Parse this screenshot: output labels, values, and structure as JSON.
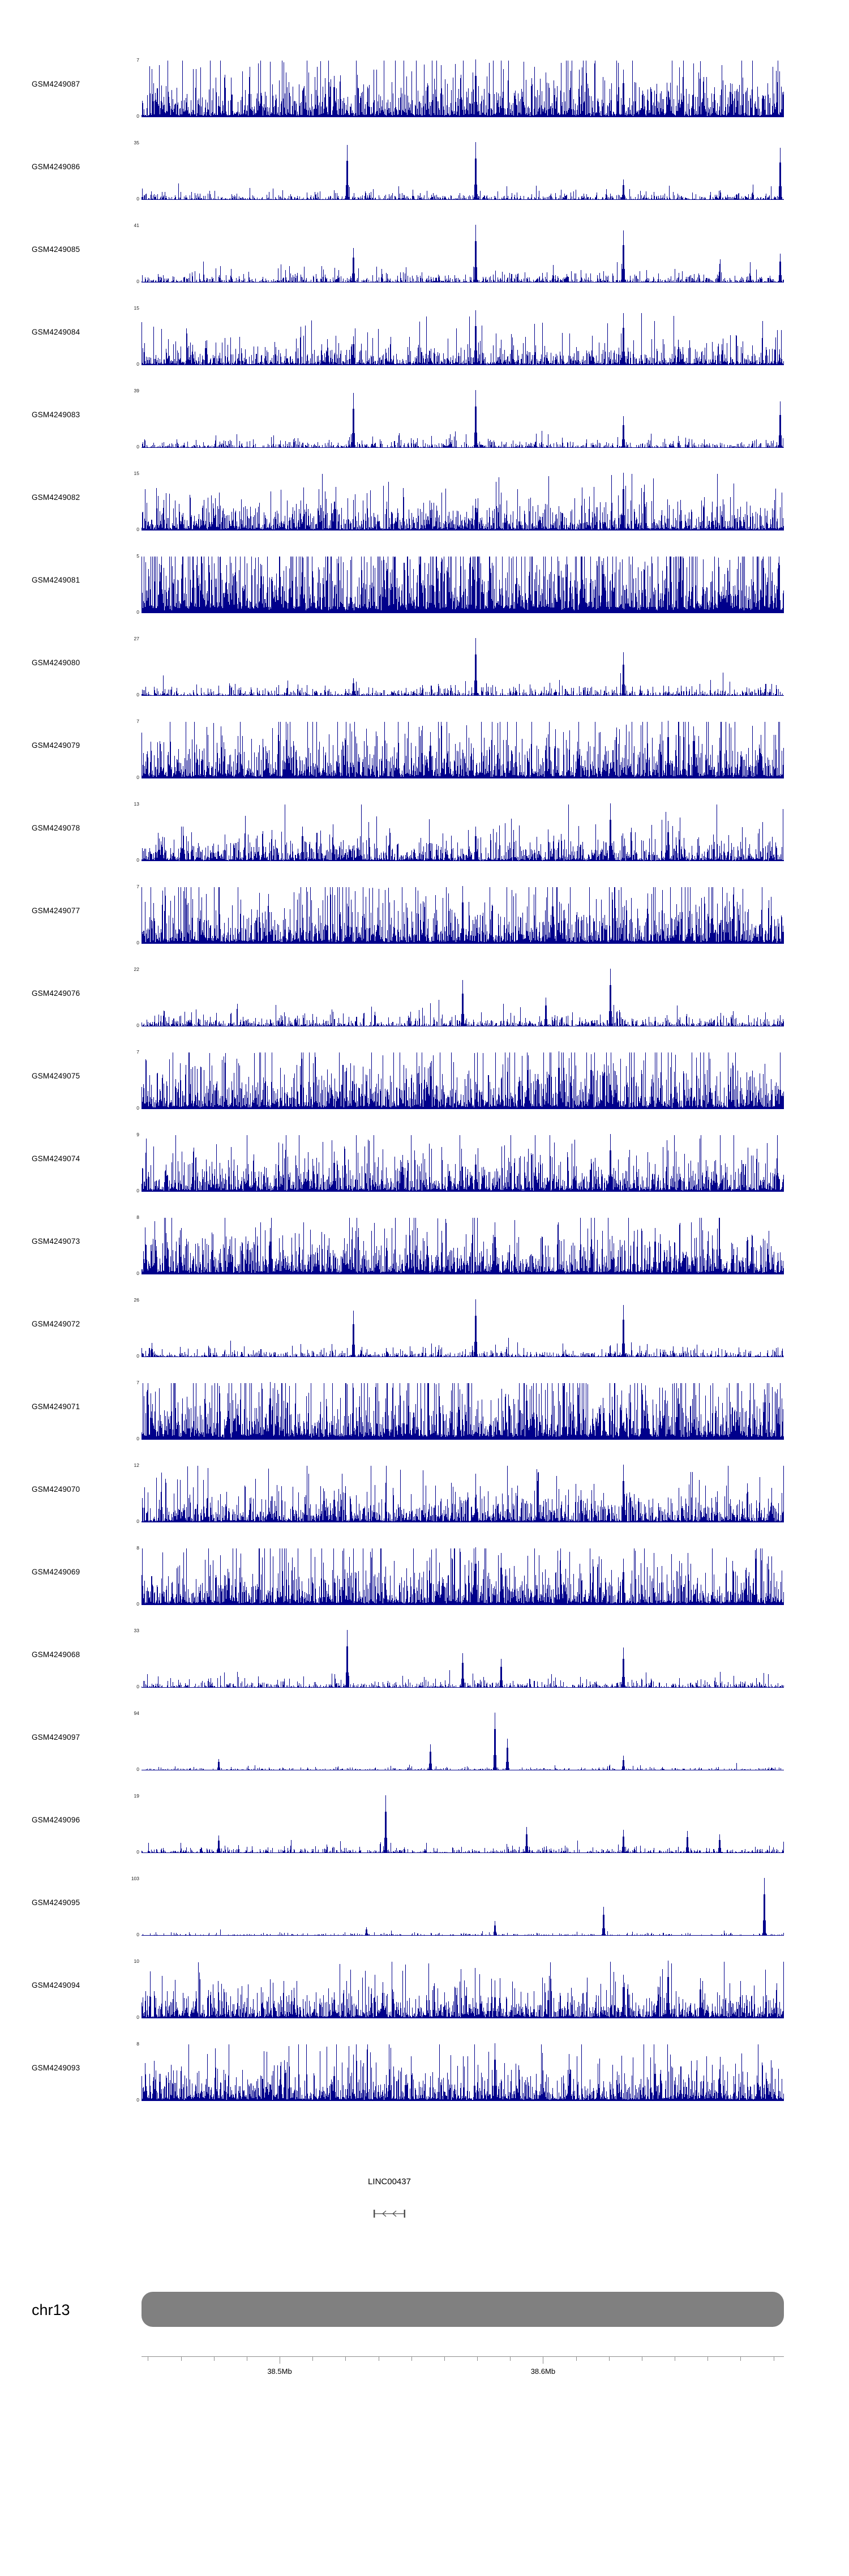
{
  "page": {
    "background": "#ffffff"
  },
  "chart_data": {
    "type": "area",
    "subtype": "genome-coverage-signal-tracks",
    "title": "",
    "xlabel": "",
    "ylabel": "",
    "grid": false,
    "legend": "none",
    "signal_color": "#00008B",
    "tracks": [
      {
        "id": "GSM4249087",
        "ymax": 7,
        "ymin": 0,
        "profile": "dense",
        "mean": 0.28,
        "base": 0.05,
        "gap": 0.08,
        "seed": 101,
        "spikes": [
          {
            "x": 0.3,
            "h": 0.72
          },
          {
            "x": 0.52,
            "h": 1.0
          },
          {
            "x": 0.75,
            "h": 0.82
          }
        ]
      },
      {
        "id": "GSM4249086",
        "ymax": 35,
        "ymin": 0,
        "profile": "sparse",
        "mean": 0.045,
        "base": 0.008,
        "gap": 0.3,
        "seed": 102,
        "spikes": [
          {
            "x": 0.32,
            "h": 0.95
          },
          {
            "x": 0.52,
            "h": 1.0
          },
          {
            "x": 0.75,
            "h": 0.35
          },
          {
            "x": 0.995,
            "h": 0.9
          }
        ]
      },
      {
        "id": "GSM4249085",
        "ymax": 41,
        "ymin": 0,
        "profile": "sparse",
        "mean": 0.06,
        "base": 0.01,
        "gap": 0.25,
        "seed": 103,
        "spikes": [
          {
            "x": 0.33,
            "h": 0.6
          },
          {
            "x": 0.52,
            "h": 1.0
          },
          {
            "x": 0.75,
            "h": 0.9
          },
          {
            "x": 0.995,
            "h": 0.5
          }
        ]
      },
      {
        "id": "GSM4249084",
        "ymax": 15,
        "ymin": 0,
        "profile": "medium",
        "mean": 0.15,
        "base": 0.03,
        "gap": 0.15,
        "seed": 104,
        "spikes": [
          {
            "x": 0.33,
            "h": 0.5
          },
          {
            "x": 0.52,
            "h": 0.95
          },
          {
            "x": 0.75,
            "h": 0.9
          }
        ]
      },
      {
        "id": "GSM4249083",
        "ymax": 39,
        "ymin": 0,
        "profile": "sparse",
        "mean": 0.05,
        "base": 0.008,
        "gap": 0.3,
        "seed": 105,
        "spikes": [
          {
            "x": 0.33,
            "h": 0.95
          },
          {
            "x": 0.52,
            "h": 1.0
          },
          {
            "x": 0.75,
            "h": 0.55
          },
          {
            "x": 0.995,
            "h": 0.8
          }
        ]
      },
      {
        "id": "GSM4249082",
        "ymax": 15,
        "ymin": 0,
        "profile": "medium-dense",
        "mean": 0.2,
        "base": 0.04,
        "gap": 0.1,
        "seed": 106,
        "spikes": [
          {
            "x": 0.3,
            "h": 0.5
          },
          {
            "x": 0.52,
            "h": 0.55
          },
          {
            "x": 0.75,
            "h": 1.0
          }
        ]
      },
      {
        "id": "GSM4249081",
        "ymax": 5,
        "ymin": 0,
        "profile": "very-dense",
        "mean": 0.5,
        "base": 0.12,
        "gap": 0.0,
        "seed": 107,
        "spikes": [
          {
            "x": 0.25,
            "h": 0.98
          },
          {
            "x": 0.65,
            "h": 0.9
          },
          {
            "x": 0.72,
            "h": 0.95
          }
        ]
      },
      {
        "id": "GSM4249080",
        "ymax": 27,
        "ymin": 0,
        "profile": "sparse",
        "mean": 0.06,
        "base": 0.01,
        "gap": 0.25,
        "seed": 108,
        "spikes": [
          {
            "x": 0.33,
            "h": 0.3
          },
          {
            "x": 0.52,
            "h": 1.0
          },
          {
            "x": 0.75,
            "h": 0.75
          }
        ]
      },
      {
        "id": "GSM4249079",
        "ymax": 7,
        "ymin": 0,
        "profile": "dense",
        "mean": 0.3,
        "base": 0.06,
        "gap": 0.05,
        "seed": 109,
        "spikes": [
          {
            "x": 0.45,
            "h": 0.8
          },
          {
            "x": 0.82,
            "h": 1.0
          },
          {
            "x": 0.86,
            "h": 0.9
          }
        ]
      },
      {
        "id": "GSM4249078",
        "ymax": 13,
        "ymin": 0,
        "profile": "medium",
        "mean": 0.16,
        "base": 0.03,
        "gap": 0.12,
        "seed": 110,
        "spikes": [
          {
            "x": 0.25,
            "h": 0.6
          },
          {
            "x": 0.52,
            "h": 0.6
          },
          {
            "x": 0.73,
            "h": 1.0
          },
          {
            "x": 0.82,
            "h": 0.7
          }
        ]
      },
      {
        "id": "GSM4249077",
        "ymax": 7,
        "ymin": 0,
        "profile": "dense",
        "mean": 0.32,
        "base": 0.06,
        "gap": 0.05,
        "seed": 111,
        "spikes": [
          {
            "x": 0.5,
            "h": 1.0
          },
          {
            "x": 0.64,
            "h": 0.9
          }
        ]
      },
      {
        "id": "GSM4249076",
        "ymax": 22,
        "ymin": 0,
        "profile": "sparse",
        "mean": 0.07,
        "base": 0.012,
        "gap": 0.22,
        "seed": 112,
        "spikes": [
          {
            "x": 0.5,
            "h": 0.8
          },
          {
            "x": 0.63,
            "h": 0.5
          },
          {
            "x": 0.73,
            "h": 1.0
          }
        ]
      },
      {
        "id": "GSM4249075",
        "ymax": 7,
        "ymin": 0,
        "profile": "dense",
        "mean": 0.3,
        "base": 0.06,
        "gap": 0.05,
        "seed": 113,
        "spikes": [
          {
            "x": 0.45,
            "h": 0.8
          },
          {
            "x": 0.65,
            "h": 1.0
          },
          {
            "x": 0.7,
            "h": 0.95
          }
        ]
      },
      {
        "id": "GSM4249074",
        "ymax": 9,
        "ymin": 0,
        "profile": "dense",
        "mean": 0.24,
        "base": 0.05,
        "gap": 0.08,
        "seed": 114,
        "spikes": [
          {
            "x": 0.3,
            "h": 0.7
          },
          {
            "x": 0.52,
            "h": 0.65
          },
          {
            "x": 0.73,
            "h": 1.0
          }
        ]
      },
      {
        "id": "GSM4249073",
        "ymax": 8,
        "ymin": 0,
        "profile": "dense",
        "mean": 0.28,
        "base": 0.06,
        "gap": 0.06,
        "seed": 115,
        "spikes": [
          {
            "x": 0.2,
            "h": 0.8
          },
          {
            "x": 0.55,
            "h": 0.9
          },
          {
            "x": 0.8,
            "h": 0.8
          }
        ]
      },
      {
        "id": "GSM4249072",
        "ymax": 26,
        "ymin": 0,
        "profile": "sparse",
        "mean": 0.05,
        "base": 0.01,
        "gap": 0.28,
        "seed": 116,
        "spikes": [
          {
            "x": 0.33,
            "h": 0.8
          },
          {
            "x": 0.52,
            "h": 1.0
          },
          {
            "x": 0.75,
            "h": 0.9
          }
        ]
      },
      {
        "id": "GSM4249071",
        "ymax": 7,
        "ymin": 0,
        "profile": "very-dense",
        "mean": 0.38,
        "base": 0.1,
        "gap": 0.02,
        "seed": 117,
        "spikes": [
          {
            "x": 0.2,
            "h": 1.0
          },
          {
            "x": 0.6,
            "h": 0.95
          }
        ]
      },
      {
        "id": "GSM4249070",
        "ymax": 12,
        "ymin": 0,
        "profile": "medium-dense",
        "mean": 0.2,
        "base": 0.04,
        "gap": 0.1,
        "seed": 118,
        "spikes": [
          {
            "x": 0.3,
            "h": 0.55
          },
          {
            "x": 0.52,
            "h": 0.6
          },
          {
            "x": 0.75,
            "h": 1.0
          }
        ]
      },
      {
        "id": "GSM4249069",
        "ymax": 8,
        "ymin": 0,
        "profile": "dense",
        "mean": 0.28,
        "base": 0.06,
        "gap": 0.06,
        "seed": 119,
        "spikes": [
          {
            "x": 0.52,
            "h": 1.0
          },
          {
            "x": 0.56,
            "h": 0.9
          },
          {
            "x": 0.75,
            "h": 0.8
          }
        ]
      },
      {
        "id": "GSM4249068",
        "ymax": 33,
        "ymin": 0,
        "profile": "sparse",
        "mean": 0.05,
        "base": 0.008,
        "gap": 0.3,
        "seed": 120,
        "spikes": [
          {
            "x": 0.32,
            "h": 1.0
          },
          {
            "x": 0.5,
            "h": 0.6
          },
          {
            "x": 0.56,
            "h": 0.5
          },
          {
            "x": 0.75,
            "h": 0.7
          }
        ]
      },
      {
        "id": "GSM4249097",
        "ymax": 94,
        "ymin": 0,
        "profile": "very-sparse",
        "mean": 0.018,
        "base": 0.004,
        "gap": 0.4,
        "seed": 121,
        "spikes": [
          {
            "x": 0.12,
            "h": 0.2
          },
          {
            "x": 0.45,
            "h": 0.45
          },
          {
            "x": 0.55,
            "h": 1.0
          },
          {
            "x": 0.57,
            "h": 0.55
          },
          {
            "x": 0.75,
            "h": 0.25
          }
        ]
      },
      {
        "id": "GSM4249096",
        "ymax": 19,
        "ymin": 0,
        "profile": "sparse",
        "mean": 0.035,
        "base": 0.006,
        "gap": 0.35,
        "seed": 122,
        "spikes": [
          {
            "x": 0.12,
            "h": 0.3
          },
          {
            "x": 0.38,
            "h": 1.0
          },
          {
            "x": 0.6,
            "h": 0.45
          },
          {
            "x": 0.75,
            "h": 0.4
          },
          {
            "x": 0.85,
            "h": 0.38
          },
          {
            "x": 0.9,
            "h": 0.32
          }
        ]
      },
      {
        "id": "GSM4249095",
        "ymax": 103,
        "ymin": 0,
        "profile": "very-sparse",
        "mean": 0.015,
        "base": 0.004,
        "gap": 0.4,
        "seed": 123,
        "spikes": [
          {
            "x": 0.35,
            "h": 0.15
          },
          {
            "x": 0.55,
            "h": 0.25
          },
          {
            "x": 0.72,
            "h": 0.5
          },
          {
            "x": 0.97,
            "h": 1.0
          }
        ]
      },
      {
        "id": "GSM4249094",
        "ymax": 10,
        "ymin": 0,
        "profile": "medium",
        "mean": 0.19,
        "base": 0.04,
        "gap": 0.1,
        "seed": 124,
        "spikes": [
          {
            "x": 0.3,
            "h": 0.45
          },
          {
            "x": 0.55,
            "h": 0.5
          },
          {
            "x": 0.75,
            "h": 0.75
          },
          {
            "x": 0.82,
            "h": 1.0
          },
          {
            "x": 0.87,
            "h": 0.7
          }
        ]
      },
      {
        "id": "GSM4249093",
        "ymax": 8,
        "ymin": 0,
        "profile": "medium-dense",
        "mean": 0.23,
        "base": 0.05,
        "gap": 0.08,
        "seed": 125,
        "spikes": [
          {
            "x": 0.3,
            "h": 0.6
          },
          {
            "x": 0.55,
            "h": 1.0
          },
          {
            "x": 0.8,
            "h": 0.65
          },
          {
            "x": 0.9,
            "h": 0.55
          }
        ]
      }
    ],
    "gene_track": {
      "label": "LINC00437",
      "strand": "minus",
      "glyph_color": "#4d4d4d"
    },
    "ideogram": {
      "label": "chr13",
      "color": "#808080"
    },
    "genome_axis": {
      "labels": [
        {
          "text": "38.5Mb",
          "pos": 0.215
        },
        {
          "text": "38.6Mb",
          "pos": 0.625
        }
      ],
      "tick_start": 0.01,
      "tick_step": 0.05125,
      "line_color": "#8c8c8c"
    }
  }
}
